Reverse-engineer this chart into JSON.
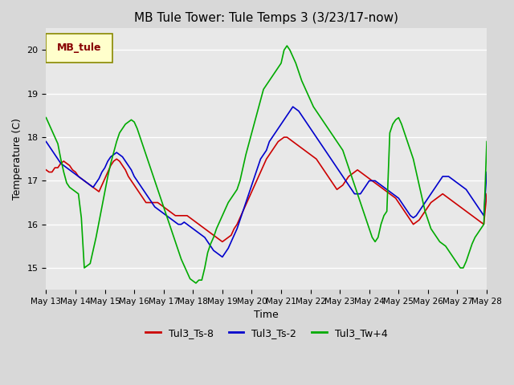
{
  "title": "MB Tule Tower: Tule Temps 3 (3/23/17-now)",
  "xlabel": "Time",
  "ylabel": "Temperature (C)",
  "ylim": [
    14.5,
    20.5
  ],
  "background_color": "#e8e8e8",
  "plot_bg_color": "#e8e8e8",
  "legend_label": "MB_tule",
  "series_labels": [
    "Tul3_Ts-8",
    "Tul3_Ts-2",
    "Tul3_Tw+4"
  ],
  "series_colors": [
    "#cc0000",
    "#0000cc",
    "#00aa00"
  ],
  "xtick_labels": [
    "May 13",
    "May 14",
    "May 15",
    "May 16",
    "May 17",
    "May 18",
    "May 19",
    "May 20",
    "May 21",
    "May 22",
    "May 23",
    "May 24",
    "May 25",
    "May 26",
    "May 27",
    "May 28"
  ],
  "x_values": [
    0,
    1,
    2,
    3,
    4,
    5,
    6,
    7,
    8,
    9,
    10,
    11,
    12,
    13,
    14,
    15,
    16,
    17,
    18,
    19,
    20,
    21,
    22,
    23,
    24,
    25,
    26,
    27,
    28,
    29,
    30,
    31,
    32,
    33,
    34,
    35,
    36,
    37,
    38,
    39,
    40,
    41,
    42,
    43,
    44,
    45,
    46,
    47,
    48,
    49,
    50,
    51,
    52,
    53,
    54,
    55,
    56,
    57,
    58,
    59,
    60,
    61,
    62,
    63,
    64,
    65,
    66,
    67,
    68,
    69,
    70,
    71,
    72,
    73,
    74,
    75,
    76,
    77,
    78,
    79,
    80,
    81,
    82,
    83,
    84,
    85,
    86,
    87,
    88,
    89,
    90,
    91,
    92,
    93,
    94,
    95,
    96,
    97,
    98,
    99,
    100,
    101,
    102,
    103,
    104,
    105,
    106,
    107,
    108,
    109,
    110,
    111,
    112,
    113,
    114,
    115,
    116,
    117,
    118,
    119,
    120,
    121,
    122,
    123,
    124,
    125,
    126,
    127,
    128,
    129,
    130,
    131,
    132,
    133,
    134,
    135,
    136,
    137,
    138,
    139,
    140,
    141,
    142,
    143,
    144,
    145,
    146,
    147,
    148,
    149,
    150
  ],
  "red_y": [
    17.25,
    17.2,
    17.2,
    17.3,
    17.3,
    17.4,
    17.45,
    17.4,
    17.35,
    17.25,
    17.2,
    17.1,
    17.05,
    17.0,
    16.95,
    16.9,
    16.85,
    16.8,
    16.75,
    16.9,
    17.05,
    17.2,
    17.35,
    17.45,
    17.5,
    17.45,
    17.35,
    17.25,
    17.1,
    17.0,
    16.9,
    16.8,
    16.7,
    16.6,
    16.5,
    16.5,
    16.5,
    16.5,
    16.5,
    16.45,
    16.4,
    16.35,
    16.3,
    16.25,
    16.2,
    16.2,
    16.2,
    16.2,
    16.2,
    16.15,
    16.1,
    16.05,
    16.0,
    15.95,
    15.9,
    15.85,
    15.8,
    15.75,
    15.7,
    15.65,
    15.6,
    15.65,
    15.7,
    15.75,
    15.9,
    16.0,
    16.15,
    16.3,
    16.45,
    16.6,
    16.75,
    16.9,
    17.05,
    17.2,
    17.35,
    17.5,
    17.6,
    17.7,
    17.8,
    17.9,
    17.95,
    18.0,
    18.0,
    17.95,
    17.9,
    17.85,
    17.8,
    17.75,
    17.7,
    17.65,
    17.6,
    17.55,
    17.5,
    17.4,
    17.3,
    17.2,
    17.1,
    17.0,
    16.9,
    16.8,
    16.85,
    16.9,
    17.0,
    17.1,
    17.15,
    17.2,
    17.25,
    17.2,
    17.15,
    17.1,
    17.05,
    17.0,
    16.95,
    16.9,
    16.85,
    16.8,
    16.75,
    16.7,
    16.65,
    16.6,
    16.5,
    16.4,
    16.3,
    16.2,
    16.1,
    16.0,
    16.05,
    16.1,
    16.2,
    16.3,
    16.4,
    16.5,
    16.55,
    16.6,
    16.65,
    16.7,
    16.65,
    16.6,
    16.55,
    16.5,
    16.45,
    16.4,
    16.35,
    16.3,
    16.25,
    16.2,
    16.15,
    16.1,
    16.05,
    16.0,
    16.7
  ],
  "blue_y": [
    17.9,
    17.8,
    17.7,
    17.6,
    17.5,
    17.4,
    17.35,
    17.3,
    17.25,
    17.2,
    17.15,
    17.1,
    17.05,
    17.0,
    16.95,
    16.9,
    16.85,
    16.95,
    17.05,
    17.2,
    17.3,
    17.45,
    17.55,
    17.6,
    17.65,
    17.6,
    17.55,
    17.45,
    17.35,
    17.25,
    17.1,
    17.0,
    16.9,
    16.8,
    16.7,
    16.6,
    16.5,
    16.4,
    16.35,
    16.3,
    16.25,
    16.2,
    16.15,
    16.1,
    16.05,
    16.0,
    16.0,
    16.05,
    16.0,
    15.95,
    15.9,
    15.85,
    15.8,
    15.75,
    15.7,
    15.6,
    15.5,
    15.4,
    15.35,
    15.3,
    15.25,
    15.35,
    15.45,
    15.6,
    15.75,
    15.9,
    16.1,
    16.3,
    16.5,
    16.7,
    16.9,
    17.1,
    17.3,
    17.5,
    17.6,
    17.7,
    17.9,
    18.0,
    18.1,
    18.2,
    18.3,
    18.4,
    18.5,
    18.6,
    18.7,
    18.65,
    18.6,
    18.5,
    18.4,
    18.3,
    18.2,
    18.1,
    18.0,
    17.9,
    17.8,
    17.7,
    17.6,
    17.5,
    17.4,
    17.3,
    17.2,
    17.1,
    17.0,
    16.9,
    16.8,
    16.7,
    16.7,
    16.7,
    16.8,
    16.9,
    17.0,
    17.0,
    17.0,
    16.95,
    16.9,
    16.85,
    16.8,
    16.75,
    16.7,
    16.65,
    16.6,
    16.5,
    16.4,
    16.3,
    16.2,
    16.15,
    16.2,
    16.3,
    16.4,
    16.5,
    16.6,
    16.7,
    16.8,
    16.9,
    17.0,
    17.1,
    17.1,
    17.1,
    17.05,
    17.0,
    16.95,
    16.9,
    16.85,
    16.8,
    16.7,
    16.6,
    16.5,
    16.4,
    16.3,
    16.2,
    17.2
  ],
  "green_y": [
    18.45,
    18.3,
    18.15,
    18.0,
    17.85,
    17.5,
    17.2,
    16.95,
    16.85,
    16.8,
    16.75,
    16.7,
    16.15,
    15.0,
    15.05,
    15.1,
    15.4,
    15.7,
    16.05,
    16.4,
    16.75,
    17.1,
    17.4,
    17.65,
    17.9,
    18.1,
    18.2,
    18.3,
    18.35,
    18.4,
    18.35,
    18.2,
    18.0,
    17.8,
    17.6,
    17.4,
    17.2,
    17.0,
    16.8,
    16.6,
    16.4,
    16.2,
    16.0,
    15.8,
    15.6,
    15.4,
    15.2,
    15.05,
    14.9,
    14.75,
    14.7,
    14.65,
    14.72,
    14.72,
    15.0,
    15.35,
    15.55,
    15.7,
    15.9,
    16.05,
    16.2,
    16.35,
    16.5,
    16.6,
    16.7,
    16.8,
    17.0,
    17.3,
    17.6,
    17.85,
    18.1,
    18.35,
    18.6,
    18.85,
    19.1,
    19.2,
    19.3,
    19.4,
    19.5,
    19.6,
    19.7,
    20.0,
    20.1,
    20.0,
    19.85,
    19.7,
    19.5,
    19.3,
    19.15,
    19.0,
    18.85,
    18.7,
    18.6,
    18.5,
    18.4,
    18.3,
    18.2,
    18.1,
    18.0,
    17.9,
    17.8,
    17.7,
    17.5,
    17.3,
    17.1,
    16.9,
    16.7,
    16.5,
    16.3,
    16.1,
    15.9,
    15.7,
    15.6,
    15.7,
    16.0,
    16.2,
    16.3,
    18.1,
    18.3,
    18.4,
    18.45,
    18.3,
    18.1,
    17.9,
    17.7,
    17.5,
    17.2,
    16.9,
    16.6,
    16.3,
    16.1,
    15.9,
    15.8,
    15.7,
    15.6,
    15.55,
    15.5,
    15.4,
    15.3,
    15.2,
    15.1,
    15.0,
    15.0,
    15.15,
    15.35,
    15.55,
    15.7,
    15.8,
    15.9,
    16.0,
    17.9
  ]
}
